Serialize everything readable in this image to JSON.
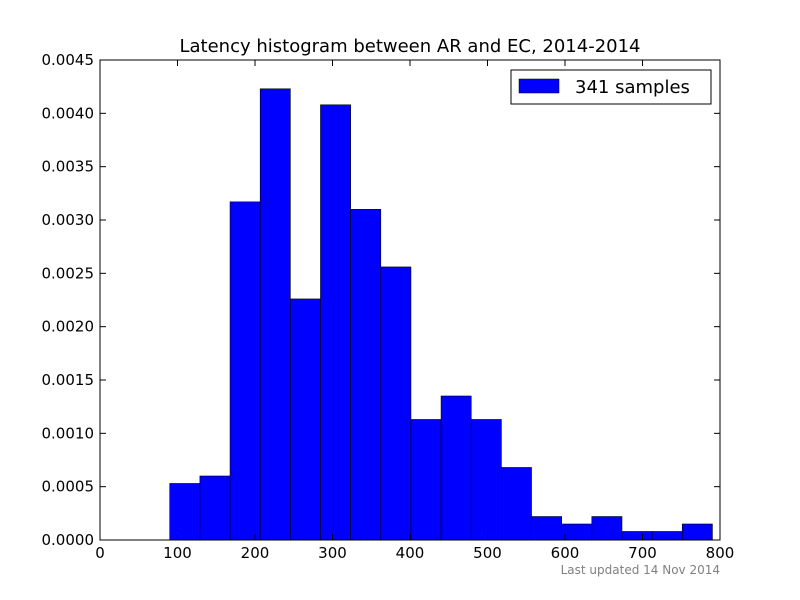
{
  "chart_data": {
    "type": "bar",
    "title": "Latency histogram between AR and EC, 2014-2014",
    "xlabel": "",
    "ylabel": "",
    "xlim": [
      0,
      800
    ],
    "ylim": [
      0,
      0.0045
    ],
    "bin_width": 38.9,
    "bins": [
      {
        "x0": 90,
        "value": 0.00053
      },
      {
        "x0": 128.9,
        "value": 0.0006
      },
      {
        "x0": 167.8,
        "value": 0.00317
      },
      {
        "x0": 206.7,
        "value": 0.00423
      },
      {
        "x0": 245.6,
        "value": 0.00226
      },
      {
        "x0": 284.5,
        "value": 0.00408
      },
      {
        "x0": 323.4,
        "value": 0.0031
      },
      {
        "x0": 362.3,
        "value": 0.00256
      },
      {
        "x0": 401.2,
        "value": 0.00113
      },
      {
        "x0": 440.1,
        "value": 0.00135
      },
      {
        "x0": 479.0,
        "value": 0.00113
      },
      {
        "x0": 517.9,
        "value": 0.00068
      },
      {
        "x0": 556.8,
        "value": 0.00022
      },
      {
        "x0": 595.7,
        "value": 0.00015
      },
      {
        "x0": 634.6,
        "value": 0.00022
      },
      {
        "x0": 673.5,
        "value": 8e-05
      },
      {
        "x0": 712.4,
        "value": 8e-05
      },
      {
        "x0": 751.3,
        "value": 0.00015
      }
    ],
    "xticks": [
      "0",
      "100",
      "200",
      "300",
      "400",
      "500",
      "600",
      "700",
      "800"
    ],
    "yticks": [
      "0.0000",
      "0.0005",
      "0.0010",
      "0.0015",
      "0.0020",
      "0.0025",
      "0.0030",
      "0.0035",
      "0.0040",
      "0.0045"
    ],
    "grid": false,
    "legend_position": "top-right",
    "series": [
      {
        "name": "341 samples",
        "color": "#0000ff"
      }
    ],
    "colors": {
      "bar_fill": "#0000ff",
      "bar_edge": "#000000",
      "axes": "#000000",
      "footer": "#808080"
    }
  },
  "footer": {
    "text": "Last updated 14 Nov 2014"
  }
}
